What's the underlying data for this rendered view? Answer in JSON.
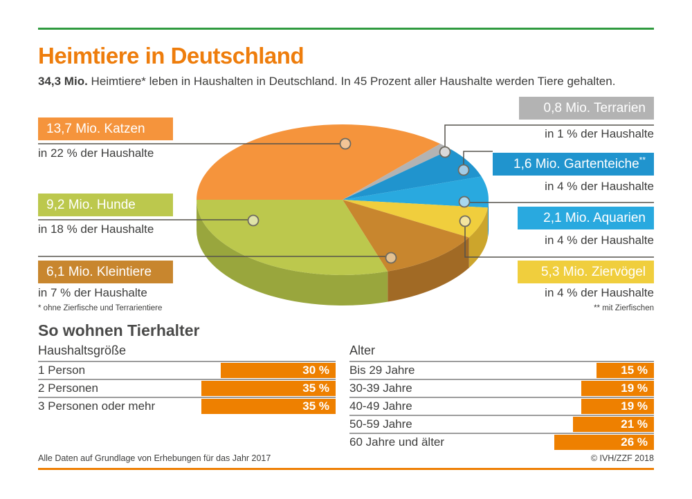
{
  "meta": {
    "background": "#FFFFFF",
    "accent_green": "#2F9A3E",
    "accent_orange": "#EE7D00",
    "bar_orange": "#EE8000",
    "text_color": "#3C3C3B",
    "callout_line_color": "#55524B",
    "table_line_color": "#9C9C9C"
  },
  "header": {
    "title": "Heimtiere in Deutschland",
    "subtitle_bold": "34,3 Mio.",
    "subtitle_rest": " Heimtiere* leben in Haushalten in Deutschland. In 45 Prozent aller Haushalte werden Tiere gehalten."
  },
  "chart_data": [
    {
      "id": "heimtiere-pie",
      "type": "pie",
      "title": "Heimtiere in Deutschland",
      "style": "3d-ellipse",
      "start_angle_deg": 180,
      "direction": "clockwise",
      "angle_basis": "households_pct",
      "slices": [
        {
          "name": "Katzen",
          "label": "13,7 Mio. Katzen",
          "sub": "in 22 % der Haushalte",
          "value_mio": 13.7,
          "households_pct": 22,
          "color": "#F5943C",
          "side_color": "#D2762A",
          "dot_fill": "#F3C596"
        },
        {
          "name": "Terrarien",
          "label": "0,8 Mio. Terrarien",
          "sub": "in 1 % der Haushalte",
          "value_mio": 0.8,
          "households_pct": 1,
          "color": "#B3B3B3",
          "side_color": "#8F8F8F",
          "dot_fill": "#D9D9D9"
        },
        {
          "name": "Gartenteiche",
          "label": "1,6 Mio. Gartenteiche",
          "sup": "**",
          "sub": "in 4 % der Haushalte",
          "value_mio": 1.6,
          "households_pct": 4,
          "color": "#2094CE",
          "side_color": "#186F9C",
          "dot_fill": "#A3CBE5"
        },
        {
          "name": "Aquarien",
          "label": "2,1 Mio. Aquarien",
          "sub": "in 4 % der Haushalte",
          "value_mio": 2.1,
          "households_pct": 4,
          "color": "#29A9DF",
          "side_color": "#1E85B2",
          "dot_fill": "#A8D7EF"
        },
        {
          "name": "Ziervögel",
          "label": "5,3 Mio. Ziervögel",
          "sub": "in 4 % der Haushalte",
          "value_mio": 5.3,
          "households_pct": 4,
          "color": "#F0CE3D",
          "side_color": "#CCA52C",
          "dot_fill": "#F4E49E"
        },
        {
          "name": "Kleintiere",
          "label": "6,1 Mio. Kleintiere",
          "sub": "in 7 % der Haushalte",
          "value_mio": 6.1,
          "households_pct": 7,
          "color": "#C8862E",
          "side_color": "#A16A25",
          "dot_fill": "#E3C191"
        },
        {
          "name": "Hunde",
          "label": "9,2 Mio. Hunde",
          "sub": "in 18 % der Haushalte",
          "value_mio": 9.2,
          "households_pct": 18,
          "color": "#BCC84D",
          "side_color": "#99A63D",
          "dot_fill": "#DFE3A8"
        }
      ]
    },
    {
      "id": "haushaltsgroesse",
      "type": "bar",
      "title": "Haushaltsgröße",
      "categories": [
        "1 Person",
        "2 Personen",
        "3 Personen oder mehr"
      ],
      "values": [
        30,
        35,
        35
      ],
      "unit": "%",
      "bar_color": "#EE8000",
      "xlim": [
        0,
        40
      ],
      "orientation": "horizontal",
      "value_labels_inside": true
    },
    {
      "id": "alter",
      "type": "bar",
      "title": "Alter",
      "categories": [
        "Bis 29 Jahre",
        "30-39 Jahre",
        "40-49 Jahre",
        "50-59 Jahre",
        "60 Jahre und älter"
      ],
      "values": [
        15,
        19,
        19,
        21,
        26
      ],
      "unit": "%",
      "bar_color": "#EE8000",
      "xlim": [
        0,
        40
      ],
      "orientation": "horizontal",
      "value_labels_inside": true
    }
  ],
  "footnotes": {
    "single_asterisk": "* ohne Zierfische und Terrarientiere",
    "double_asterisk": "** mit Zierfischen"
  },
  "section": {
    "heading": "So wohnen Tierhalter"
  },
  "footer": {
    "source": "Alle Daten auf Grundlage von Erhebungen für das Jahr 2017",
    "copyright": "© IVH/ZZF 2018"
  }
}
